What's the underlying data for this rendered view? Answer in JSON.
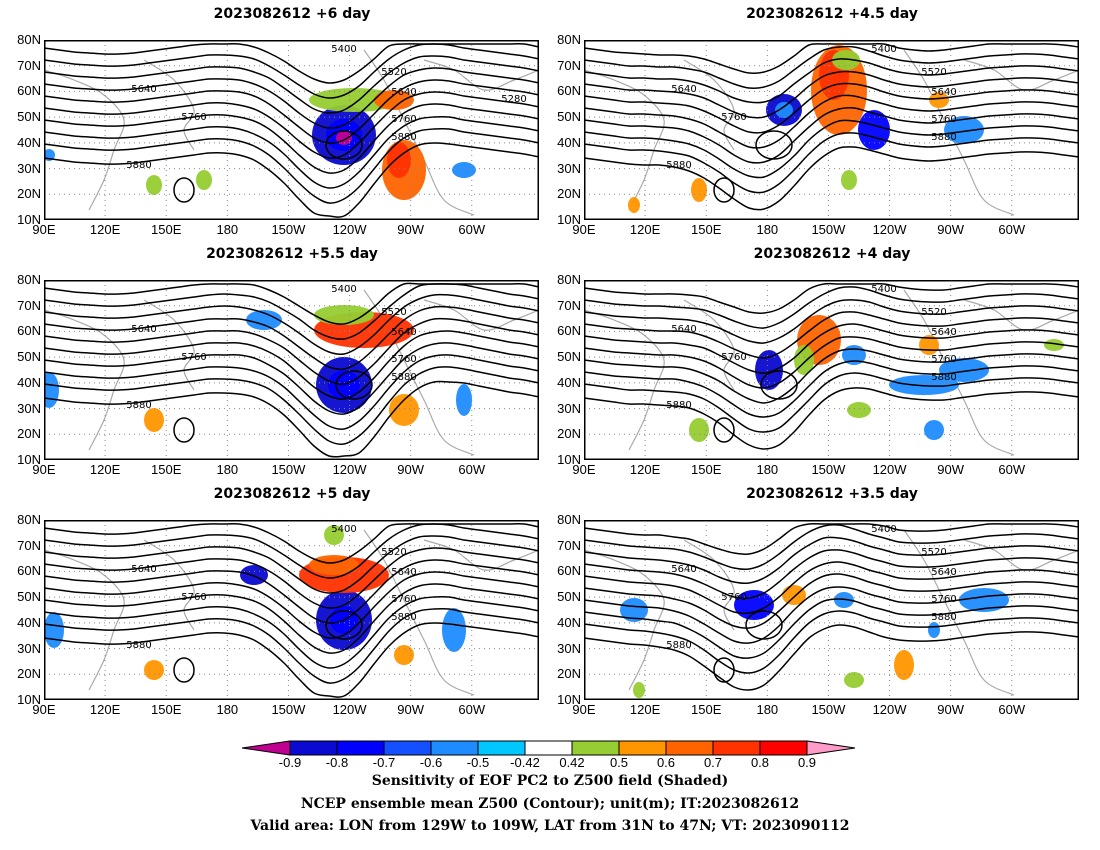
{
  "figure": {
    "panels": [
      {
        "title": "2023082612  +6 day"
      },
      {
        "title": "2023082612  +4.5 day"
      },
      {
        "title": "2023082612  +5.5 day"
      },
      {
        "title": "2023082612  +4 day"
      },
      {
        "title": "2023082612  +5 day"
      },
      {
        "title": "2023082612  +3.5 day"
      }
    ],
    "lat_labels": [
      "80N",
      "70N",
      "60N",
      "50N",
      "40N",
      "30N",
      "20N",
      "10N"
    ],
    "lon_labels": [
      "90E",
      "120E",
      "150E",
      "180",
      "150W",
      "120W",
      "90W",
      "60W"
    ],
    "contour_labels": [
      "5400",
      "5520",
      "5640",
      "5760",
      "5880",
      "5280"
    ],
    "colorbar": {
      "labels": [
        "-0.9",
        "-0.8",
        "-0.7",
        "-0.6",
        "-0.5",
        "-0.42",
        "0.42",
        "0.5",
        "0.6",
        "0.7",
        "0.8",
        "0.9"
      ],
      "colors": [
        "#c00090",
        "#0a0ad0",
        "#0000ff",
        "#1450ff",
        "#1e8cff",
        "#00c8ff",
        "#ffffff",
        "#96cd32",
        "#ff9600",
        "#ff6400",
        "#ff3200",
        "#ff0000",
        "#ff9bc8"
      ]
    },
    "footer": {
      "line1": "Sensitivity of EOF PC2 to Z500 field (Shaded)",
      "line2": "NCEP ensemble mean Z500 (Contour); unit(m); IT:2023082612",
      "line3": "Valid area: LON from 129W to 109W, LAT from 31N to 47N; VT: 2023090112"
    }
  }
}
